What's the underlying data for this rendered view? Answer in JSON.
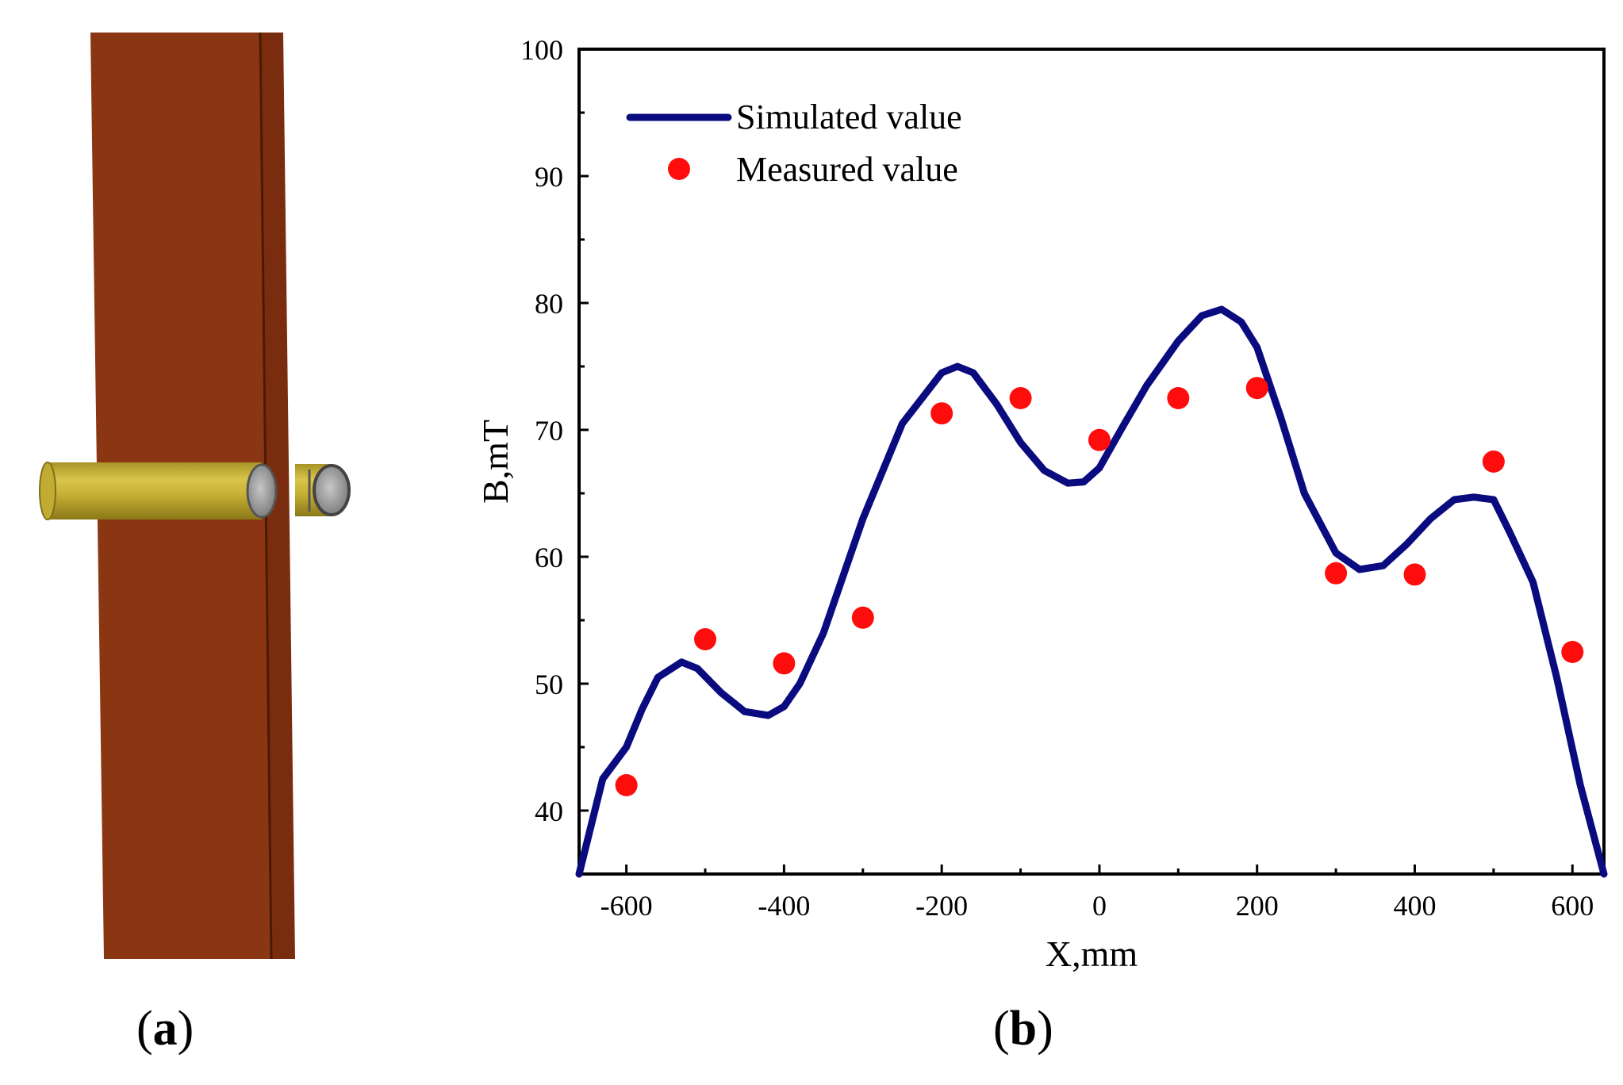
{
  "figure": {
    "panel_a": {
      "letter": "a",
      "description_hidden": true
    },
    "panel_b": {
      "letter": "b"
    }
  },
  "colors": {
    "bar_face": "#8b3612",
    "bar_edge": "#6e2a0c",
    "cylinder": "#c9b236",
    "line": "#0b0b80",
    "marker": "#ff0d0d"
  },
  "chart_data": {
    "type": "line",
    "xlabel": "X,mm",
    "ylabel": "B,mT",
    "xlim": [
      -660,
      640
    ],
    "ylim": [
      35,
      100
    ],
    "xticks": [
      -600,
      -400,
      -200,
      0,
      200,
      400,
      600
    ],
    "xtick_labels": [
      "-600",
      "-400",
      "-200",
      "0",
      "200",
      "400",
      "600"
    ],
    "yticks": [
      40,
      50,
      60,
      70,
      80,
      90,
      100
    ],
    "ytick_labels": [
      "40",
      "50",
      "60",
      "70",
      "80",
      "90",
      "100"
    ],
    "legend_position": "top-left",
    "series": [
      {
        "name": "Simulated value",
        "style": "line",
        "x": [
          -660,
          -630,
          -600,
          -580,
          -560,
          -530,
          -510,
          -480,
          -450,
          -420,
          -400,
          -380,
          -350,
          -300,
          -250,
          -200,
          -180,
          -160,
          -130,
          -100,
          -70,
          -40,
          -20,
          0,
          30,
          60,
          100,
          130,
          155,
          180,
          200,
          230,
          260,
          300,
          330,
          360,
          390,
          420,
          450,
          475,
          500,
          520,
          550,
          580,
          610,
          640
        ],
        "y": [
          35,
          42.5,
          45,
          48,
          50.5,
          51.7,
          51.2,
          49.3,
          47.8,
          47.5,
          48.2,
          50,
          54,
          63,
          70.5,
          74.5,
          75,
          74.5,
          72,
          69,
          66.8,
          65.8,
          65.9,
          67,
          70.3,
          73.5,
          77,
          79,
          79.5,
          78.5,
          76.5,
          71,
          65,
          60.3,
          59,
          59.3,
          61,
          63,
          64.5,
          64.7,
          64.5,
          62,
          58,
          50.5,
          42,
          34.5
        ]
      },
      {
        "name": "Measured value",
        "style": "scatter",
        "x": [
          -600,
          -500,
          -400,
          -300,
          -200,
          -100,
          0,
          100,
          200,
          300,
          400,
          500,
          600
        ],
        "y": [
          42,
          53.5,
          51.6,
          55.2,
          71.3,
          72.5,
          69.2,
          72.5,
          73.3,
          58.7,
          58.6,
          67.5,
          52.5
        ]
      }
    ]
  }
}
